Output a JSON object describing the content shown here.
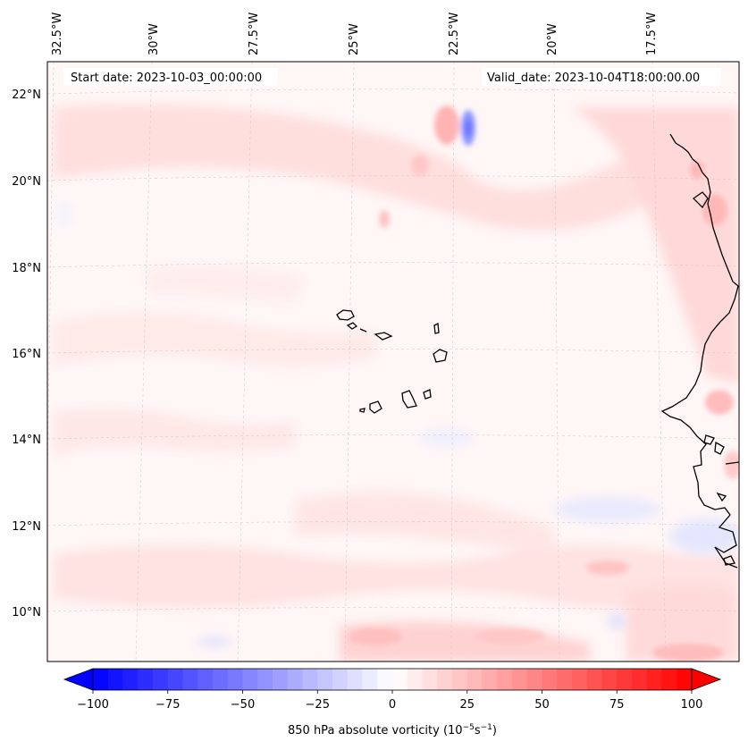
{
  "map": {
    "start_date": "Start date: 2023-10-03_00:00:00",
    "valid_date": "Valid_date: 2023-10-04T18:00:00.00",
    "lon_ticks": [
      "32.5°W",
      "30°W",
      "27.5°W",
      "25°W",
      "22.5°W",
      "20°W",
      "17.5°W"
    ],
    "lat_ticks": [
      "22°N",
      "20°N",
      "18°N",
      "16°N",
      "14°N",
      "12°N",
      "10°N"
    ],
    "field": "850 hPa absolute vorticity",
    "colormap": "bwr"
  },
  "colorbar": {
    "label_prefix": "850 hPa absolute vorticity (10",
    "label_exp1": "−5",
    "label_mid": "s",
    "label_exp2": "−1",
    "label_suffix": ")",
    "ticks": [
      "−100",
      "−75",
      "−50",
      "−25",
      "0",
      "25",
      "50",
      "75",
      "100"
    ],
    "min": -100,
    "max": 100,
    "levels": 40,
    "min_color": "#0000ff",
    "mid_color": "#ffffff",
    "max_color": "#ff0000"
  }
}
